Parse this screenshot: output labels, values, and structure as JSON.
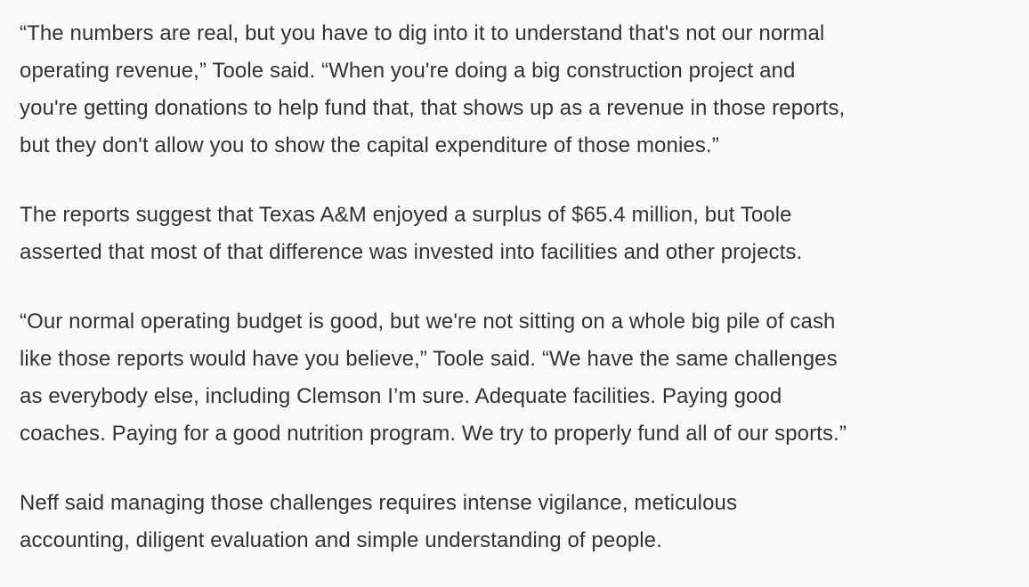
{
  "page": {
    "background_color": "#fafafa",
    "text_color": "#333333"
  },
  "article": {
    "paragraphs": [
      {
        "lines": [
          "“The numbers are real, but you have to dig into it to understand that's not our normal",
          "operating revenue,” Toole said. “When you're doing a big construction project and",
          "you're getting donations to help fund that, that shows up as a revenue in those reports,",
          "but they don't allow you to show the capital expenditure of those monies.”"
        ]
      },
      {
        "lines": [
          "The reports suggest that Texas A&M enjoyed a surplus of $65.4 million, but Toole",
          "asserted that most of that difference was invested into facilities and other projects."
        ]
      },
      {
        "lines": [
          "“Our normal operating budget is good, but we're not sitting on a whole big pile of cash",
          "like those reports would have you believe,” Toole said. “We have the same challenges",
          "as everybody else, including Clemson I’m sure. Adequate facilities. Paying good",
          "coaches. Paying for a good nutrition program. We try to properly fund all of our sports.”"
        ]
      },
      {
        "lines": [
          "Neff said managing those challenges requires intense vigilance, meticulous",
          "accounting, diligent evaluation and simple understanding of people."
        ]
      }
    ]
  }
}
